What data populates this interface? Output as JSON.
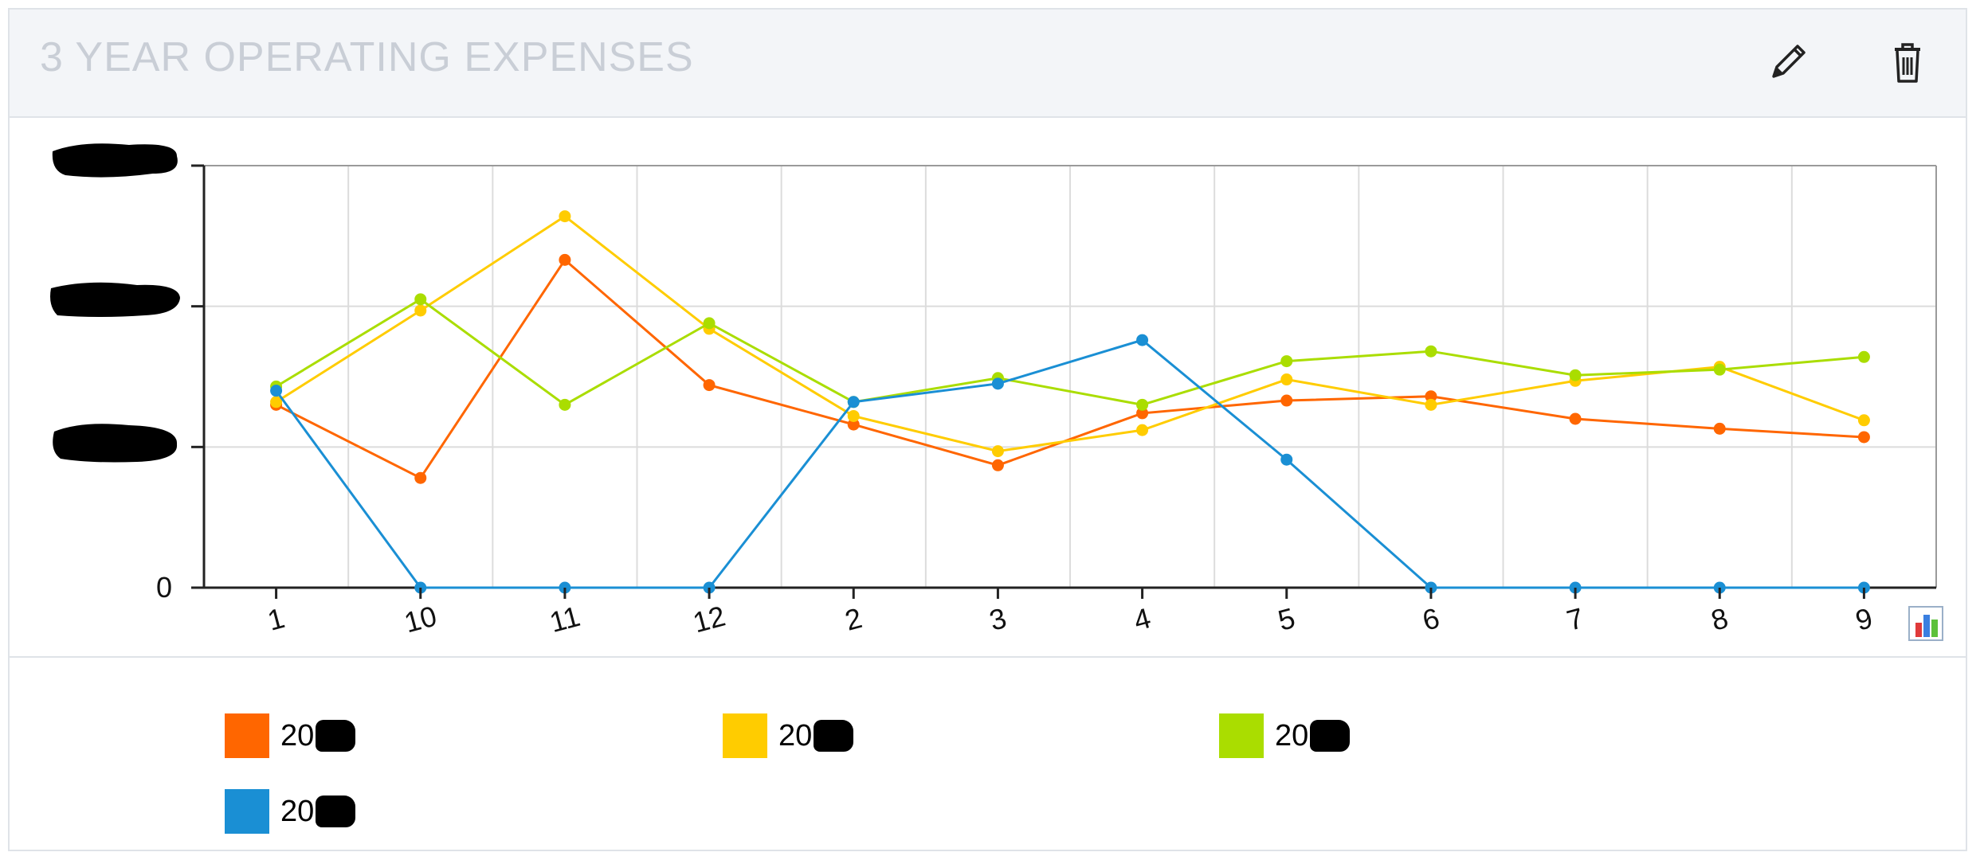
{
  "panel": {
    "title": "3 YEAR OPERATING EXPENSES",
    "edit_icon": "pencil-icon",
    "delete_icon": "trash-icon",
    "chart_type_icon": "bar-chart-icon"
  },
  "chart_data": {
    "type": "line",
    "title": "3 YEAR OPERATING EXPENSES",
    "categories": [
      "1",
      "10",
      "11",
      "12",
      "2",
      "3",
      "4",
      "5",
      "6",
      "7",
      "8",
      "9"
    ],
    "y_tick_labels": [
      "0"
    ],
    "ylim": [
      0,
      3
    ],
    "grid": true,
    "legend_position": "bottom",
    "series": [
      {
        "name": "20",
        "color": "#ff6600",
        "values": [
          1.3,
          0.78,
          2.33,
          1.44,
          1.16,
          0.87,
          1.24,
          1.33,
          1.36,
          1.2,
          1.13,
          1.07
        ]
      },
      {
        "name": "20",
        "color": "#ffcc00",
        "values": [
          1.32,
          1.97,
          2.64,
          1.84,
          1.22,
          0.97,
          1.12,
          1.48,
          1.3,
          1.47,
          1.57,
          1.19
        ]
      },
      {
        "name": "20",
        "color": "#aadd00",
        "values": [
          1.43,
          2.05,
          1.3,
          1.88,
          1.32,
          1.49,
          1.3,
          1.61,
          1.68,
          1.51,
          1.55,
          1.64
        ]
      },
      {
        "name": "20",
        "color": "#1a8fd4",
        "values": [
          1.4,
          0.0,
          0.0,
          0.0,
          1.32,
          1.45,
          1.76,
          0.91,
          0.0,
          0.0,
          0.0,
          0.0
        ]
      }
    ]
  }
}
